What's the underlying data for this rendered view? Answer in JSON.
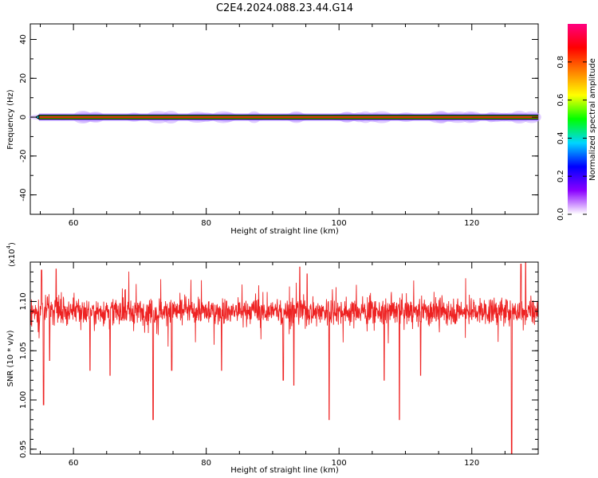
{
  "title": "C2E4.2024.088.23.44.G14",
  "colorbar": {
    "label": "Normalized spectral amplitude",
    "ticks": [
      "0.0",
      "0.2",
      "0.4",
      "0.6",
      "0.8"
    ],
    "tick_values": [
      0.0,
      0.2,
      0.4,
      0.6,
      0.8
    ],
    "range": [
      0,
      1
    ]
  },
  "chart_data": [
    {
      "type": "heatmap",
      "name": "spectrogram",
      "xlabel": "Height of straight line (km)",
      "ylabel": "Frequency (Hz)",
      "xlim": [
        53.5,
        130
      ],
      "ylim": [
        -50,
        48
      ],
      "xticks": [
        60,
        80,
        100,
        120
      ],
      "yticks": [
        40,
        20,
        0,
        -20,
        -40
      ],
      "ytick_labels": [
        "40",
        "20",
        "0",
        "-20",
        "-40"
      ],
      "band_center_hz": 0,
      "band_halfwidth_hz": 0.6,
      "colormap": [
        "#ffffff",
        "#8a00ff",
        "#0000ff",
        "#00d5ff",
        "#00ff00",
        "#ffff00",
        "#ff8000",
        "#ff0000",
        "#ff0080"
      ]
    },
    {
      "type": "line",
      "name": "snr",
      "xlabel": "Height of straight line (km)",
      "ylabel": "SNR (10 * v/v)",
      "multiplier_label": "(x10",
      "multiplier_exp": "4",
      "xlim": [
        53.5,
        130
      ],
      "ylim": [
        0.945,
        1.14
      ],
      "xticks": [
        60,
        80,
        100,
        120
      ],
      "yticks": [
        0.95,
        1.0,
        1.05,
        1.1
      ],
      "ytick_labels": [
        "0.95",
        "1.00",
        "1.05",
        "1.10"
      ],
      "line_color": "#ee2222",
      "baseline": 1.09,
      "typical_noise": 0.012,
      "dips": [
        [
          55.5,
          0.995
        ],
        [
          56.4,
          1.04
        ],
        [
          62.5,
          1.03
        ],
        [
          65.5,
          1.025
        ],
        [
          72.0,
          0.98
        ],
        [
          74.8,
          1.03
        ],
        [
          82.3,
          1.03
        ],
        [
          91.6,
          1.02
        ],
        [
          93.2,
          1.015
        ],
        [
          98.5,
          0.98
        ],
        [
          106.8,
          1.02
        ],
        [
          109.1,
          0.98
        ],
        [
          112.3,
          1.025
        ],
        [
          126.0,
          0.935
        ]
      ],
      "peaks": [
        [
          55.2,
          1.132
        ],
        [
          57.4,
          1.133
        ],
        [
          94.1,
          1.135
        ],
        [
          95.2,
          1.128
        ],
        [
          127.4,
          1.138
        ],
        [
          128.1,
          1.14
        ]
      ]
    }
  ]
}
